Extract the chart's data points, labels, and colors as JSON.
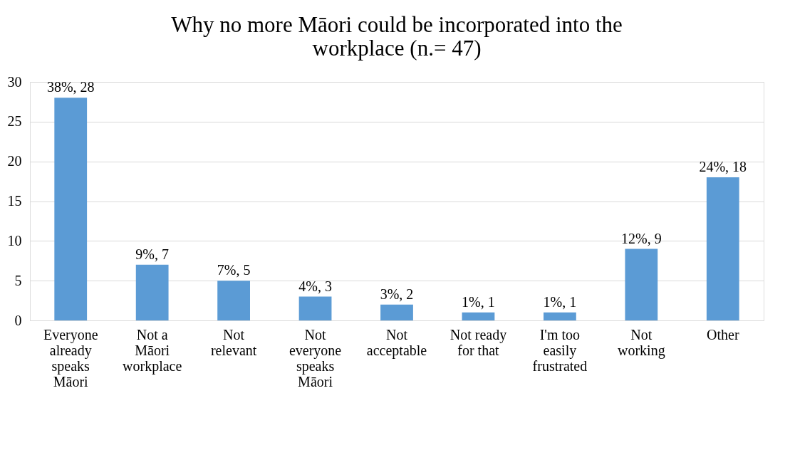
{
  "chart_data": {
    "type": "bar",
    "title": "Why no more Māori could be incorporated into the workplace (n.= 47)",
    "categories": [
      "Everyone already speaks Māori",
      "Not a Māori workplace",
      "Not relevant",
      "Not everyone speaks Māori",
      "Not acceptable",
      "Not ready for that",
      "I'm too easily frustrated",
      "Not working",
      "Other"
    ],
    "values": [
      28,
      7,
      5,
      3,
      2,
      1,
      1,
      9,
      18
    ],
    "value_labels": [
      "38%, 28",
      "9%, 7",
      "7%, 5",
      "4%, 3",
      "3%, 2",
      "1%, 1",
      "1%, 1",
      "12%, 9",
      "24%, 18"
    ],
    "color": "#5b9bd5",
    "ylim": [
      0,
      30
    ],
    "yticks": [
      0,
      5,
      10,
      15,
      20,
      25,
      30
    ],
    "grid": "y"
  }
}
